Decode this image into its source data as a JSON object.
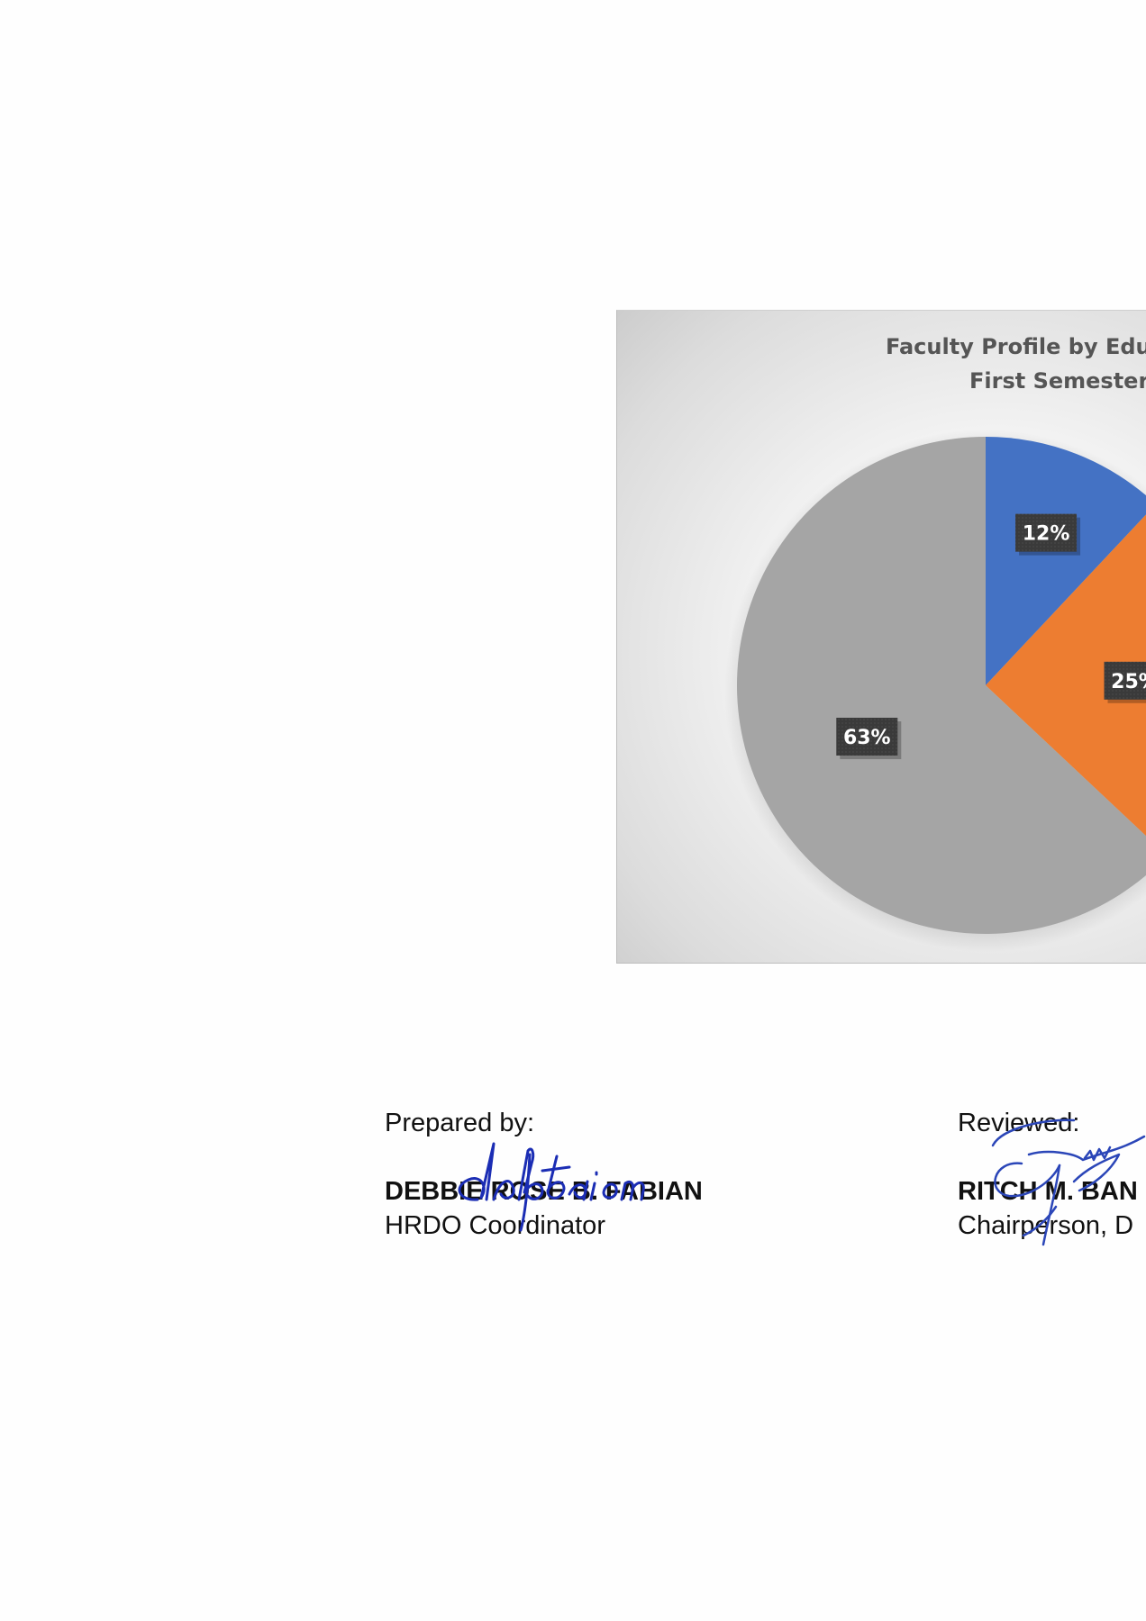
{
  "chart": {
    "title_line1": "Faculty Profile by Edu",
    "title_line2": "First Semester,",
    "label_color": "#3a3a3a"
  },
  "chart_data": {
    "type": "pie",
    "title": "Faculty Profile by Edu First Semester,",
    "values": [
      12,
      25,
      63
    ],
    "labels": [
      "12%",
      "25%",
      "63%"
    ],
    "colors": [
      "#4472C4",
      "#ED7D31",
      "#A5A5A5"
    ]
  },
  "signatures": {
    "prepared": {
      "caption": "Prepared by:",
      "name": "DEBBIE ROSE B. FABIAN",
      "title": "HRDO Coordinator",
      "signature_text": "dbfabian"
    },
    "reviewed": {
      "caption": "Reviewed:",
      "name": "RITCH M. BAN",
      "title": "Chairperson, D",
      "signature_text": "signature"
    }
  }
}
